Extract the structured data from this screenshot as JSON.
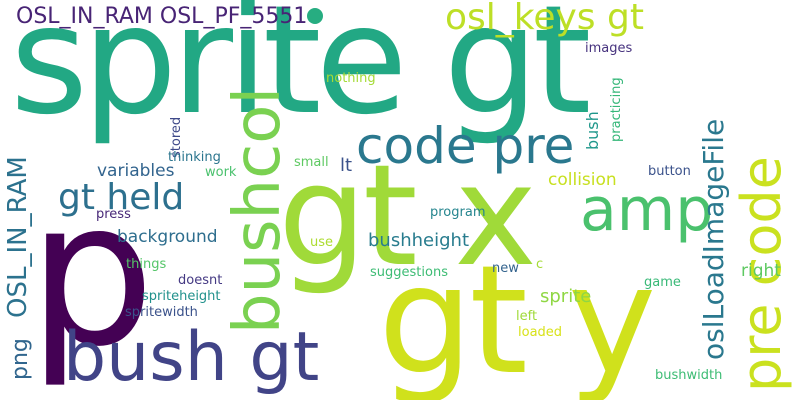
{
  "cloud": {
    "background": "#ffffff",
    "dot_color": "#27ad81",
    "words": [
      {
        "text": "sprite gt",
        "color": "#22a884"
      },
      {
        "text": "gt x",
        "color": "#a0da39"
      },
      {
        "text": "p",
        "color": "#440154"
      },
      {
        "text": "gt y",
        "color": "#d0e11c"
      },
      {
        "text": "bush gt",
        "color": "#414487"
      },
      {
        "text": "bushcol",
        "color": "#7ad151"
      },
      {
        "text": "amp",
        "color": "#4ac16d"
      },
      {
        "text": "code pre",
        "color": "#2a788e"
      },
      {
        "text": "pre code",
        "color": "#cae11f"
      },
      {
        "text": "OSL_IN_RAM",
        "color": "#2c728e"
      },
      {
        "text": "oslLoadImageFile",
        "color": "#2a788e"
      },
      {
        "text": "osl_keys gt",
        "color": "#bddf26"
      },
      {
        "text": "OSL_IN_RAM OSL_PF_5551",
        "color": "#482475"
      },
      {
        "text": "gt held",
        "color": "#2d708e"
      },
      {
        "text": "png",
        "color": "#31668e"
      },
      {
        "text": "bushheight",
        "color": "#287c8e"
      },
      {
        "text": "sprite",
        "color": "#8fd744"
      },
      {
        "text": "background",
        "color": "#2e6e8e"
      },
      {
        "text": "variables",
        "color": "#32648e"
      },
      {
        "text": "collision",
        "color": "#c8e020"
      },
      {
        "text": "lt",
        "color": "#3b528b"
      },
      {
        "text": "right",
        "color": "#5ec962"
      },
      {
        "text": "bush",
        "color": "#1f978b"
      },
      {
        "text": "images",
        "color": "#46327e"
      },
      {
        "text": "nothing",
        "color": "#a5db36"
      },
      {
        "text": "practicing",
        "color": "#35b779"
      },
      {
        "text": "stored",
        "color": "#3e4989"
      },
      {
        "text": "thinking",
        "color": "#2b758e"
      },
      {
        "text": "work",
        "color": "#4ac16d"
      },
      {
        "text": "small",
        "color": "#5ec962"
      },
      {
        "text": "button",
        "color": "#3b528b"
      },
      {
        "text": "press",
        "color": "#482878"
      },
      {
        "text": "program",
        "color": "#25858e"
      },
      {
        "text": "use",
        "color": "#addc30"
      },
      {
        "text": "things",
        "color": "#54c568"
      },
      {
        "text": "doesnt",
        "color": "#443983"
      },
      {
        "text": "suggestions",
        "color": "#3dbc74"
      },
      {
        "text": "new",
        "color": "#33638d"
      },
      {
        "text": "c",
        "color": "#a5db36"
      },
      {
        "text": "game",
        "color": "#38b977"
      },
      {
        "text": "spriteheight",
        "color": "#21918c"
      },
      {
        "text": "spritewidth",
        "color": "#3b528b"
      },
      {
        "text": "left",
        "color": "#a0da39"
      },
      {
        "text": "loaded",
        "color": "#d8e219"
      },
      {
        "text": "bushwidth",
        "color": "#3dbc74"
      }
    ]
  }
}
